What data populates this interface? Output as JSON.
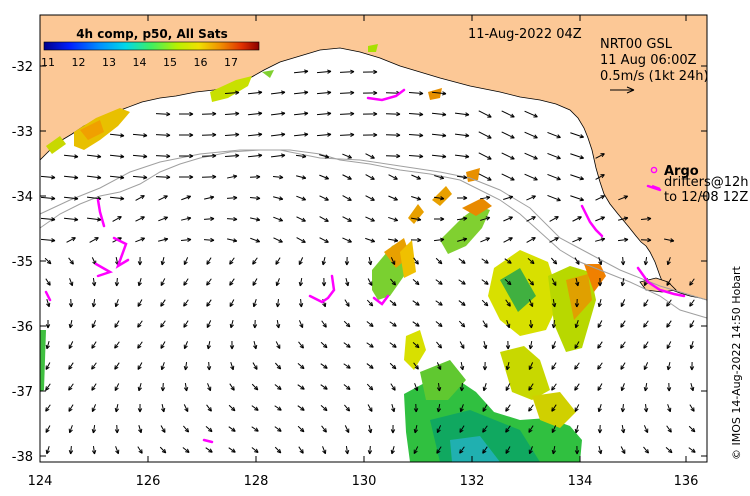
{
  "map": {
    "datetime_title": "11-Aug-2022 04Z",
    "colorbar": {
      "title": "4h comp, p50, All Sats",
      "ticks": [
        "11",
        "12",
        "13",
        "14",
        "15",
        "16",
        "17"
      ],
      "colors": [
        "#00008b",
        "#0020ff",
        "#0090ff",
        "#00d8e8",
        "#40f060",
        "#b8f000",
        "#f0e000",
        "#f09000",
        "#e03000",
        "#8b0000"
      ]
    },
    "current_info": {
      "line1": "NRT00 GSL",
      "line2": "11 Aug 06:00Z",
      "line3": "0.5m/s (1kt 24h)"
    },
    "legend": {
      "argo_label": "Argo",
      "drifters_line1": "drifters@12h",
      "drifters_line2": "to 12/08 12Z"
    },
    "credit": "© IMOS 14-Aug-2022 14:50 Hobart",
    "x_ticks": [
      "124",
      "126",
      "128",
      "130",
      "132",
      "134",
      "136"
    ],
    "y_ticks": [
      "-32",
      "-33",
      "-34",
      "-35",
      "-36",
      "-37",
      "-38"
    ],
    "colors": {
      "land": "#fcc896",
      "argo_drifter": "#ff00ff",
      "isobath": "#a0a0a0"
    }
  }
}
